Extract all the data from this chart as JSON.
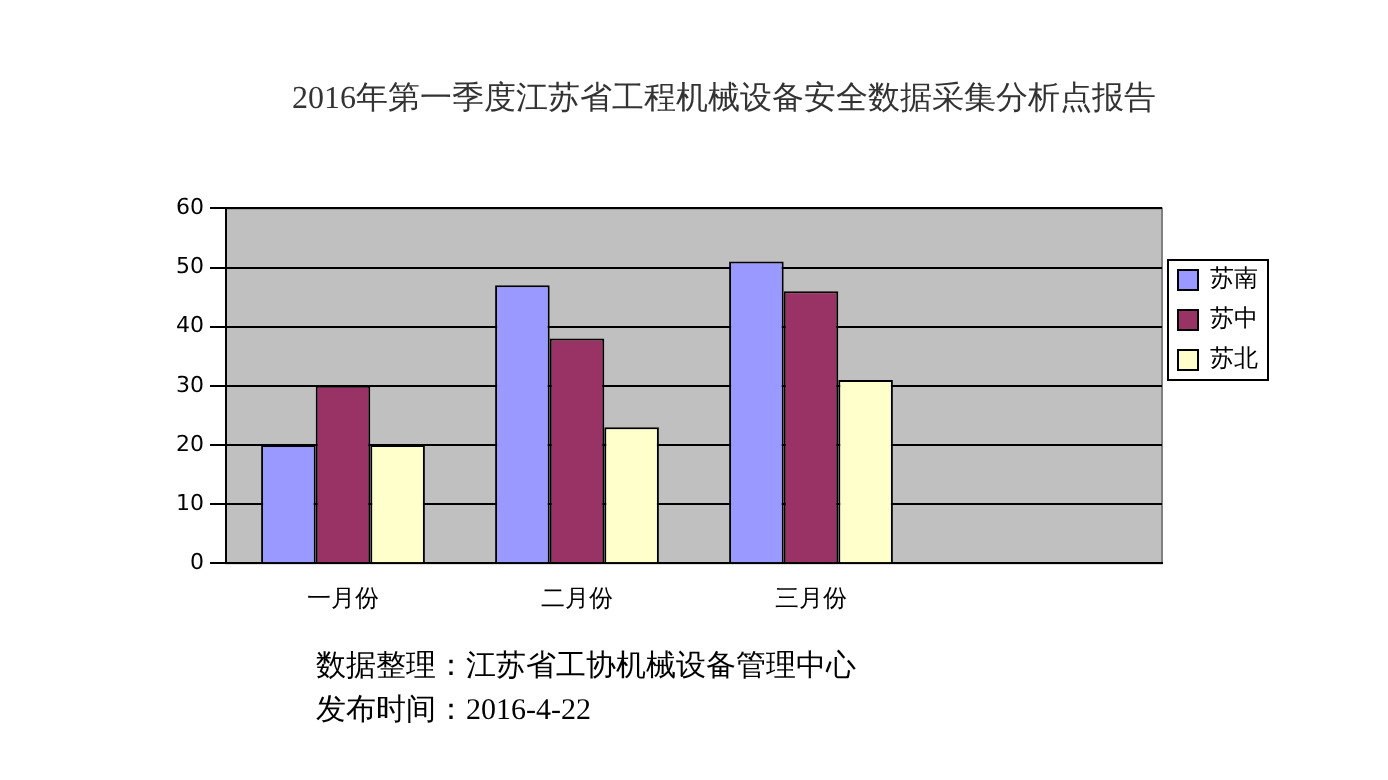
{
  "chart_data": {
    "type": "bar",
    "title": "2016年第一季度江苏省工程机械设备安全数据采集分析点报告",
    "categories": [
      "一月份",
      "二月份",
      "三月份",
      null
    ],
    "series": [
      {
        "name": "苏南",
        "color": "#9999ff",
        "values": [
          20,
          47,
          51,
          null
        ]
      },
      {
        "name": "苏中",
        "color": "#993366",
        "values": [
          30,
          38,
          46,
          null
        ]
      },
      {
        "name": "苏北",
        "color": "#ffffcc",
        "values": [
          20,
          23,
          31,
          null
        ]
      }
    ],
    "ylim": [
      0,
      60
    ],
    "yticks": [
      0,
      10,
      20,
      30,
      40,
      50,
      60
    ],
    "grid": "y",
    "legend": "right",
    "annotations": [
      "数据整理：江苏省工协机械设备管理中心",
      "发布时间：2016-4-22"
    ]
  }
}
